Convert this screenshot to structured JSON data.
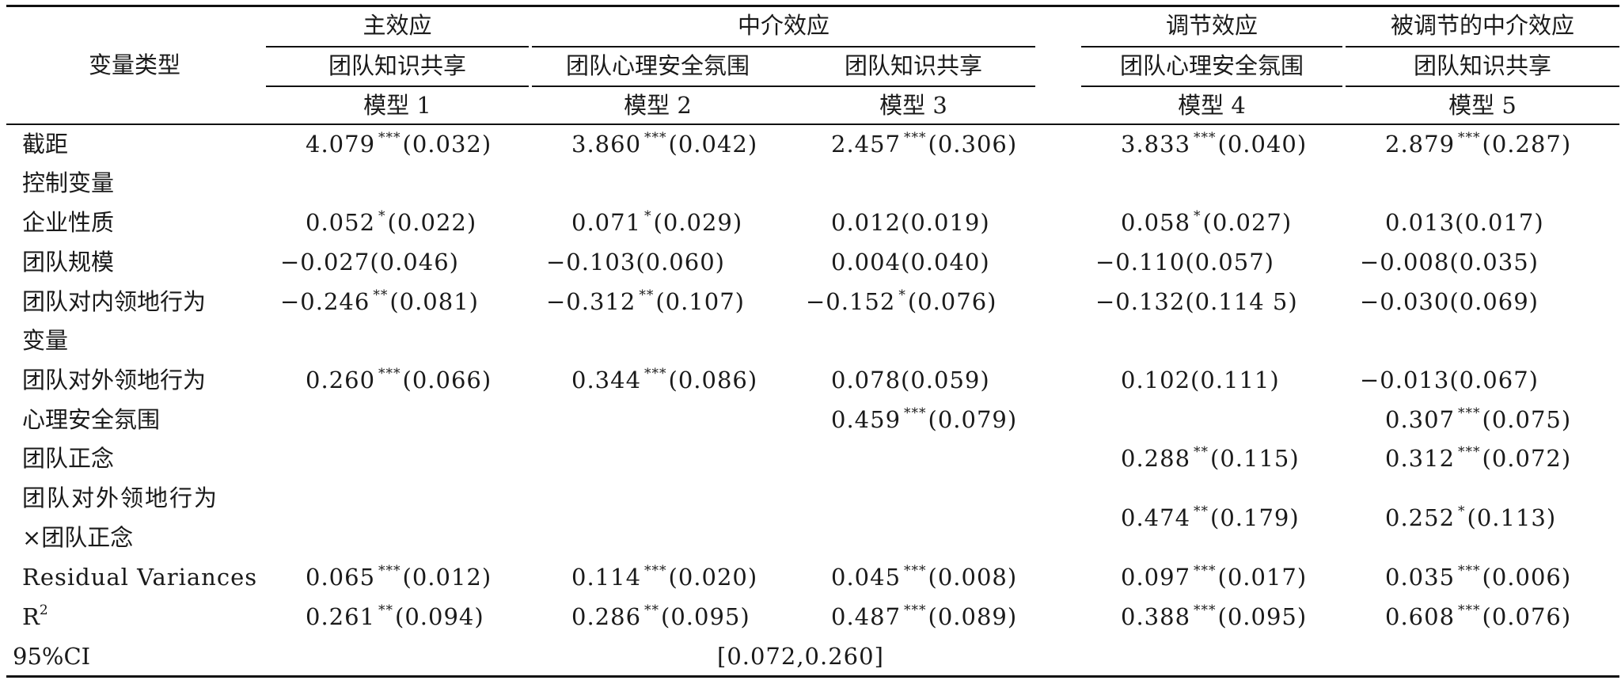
{
  "header": {
    "var_type": "变量类型",
    "groups": [
      "主效应",
      "中介效应",
      "调节效应",
      "被调节的中介效应"
    ],
    "dv": [
      "团队知识共享",
      "团队心理安全氛围",
      "团队知识共享",
      "团队心理安全氛围",
      "团队知识共享"
    ],
    "models": [
      "模型 1",
      "模型 2",
      "模型 3",
      "模型 4",
      "模型 5"
    ]
  },
  "rows": [
    {
      "label": "截距",
      "cells": [
        {
          "v": "4.079",
          "s": "***",
          "se": "(0.032)"
        },
        {
          "v": "3.860",
          "s": "***",
          "se": "(0.042)"
        },
        {
          "v": "2.457",
          "s": "***",
          "se": "(0.306)"
        },
        {
          "v": "3.833",
          "s": "***",
          "se": "(0.040)"
        },
        {
          "v": "2.879",
          "s": "***",
          "se": "(0.287)"
        }
      ]
    },
    {
      "label": "控制变量",
      "cells": []
    },
    {
      "label": "企业性质",
      "cells": [
        {
          "v": "0.052",
          "s": "*",
          "se": "(0.022)"
        },
        {
          "v": "0.071",
          "s": "*",
          "se": "(0.029)"
        },
        {
          "v": "0.012",
          "s": "",
          "se": "(0.019)"
        },
        {
          "v": "0.058",
          "s": "*",
          "se": "(0.027)"
        },
        {
          "v": "0.013",
          "s": "",
          "se": "(0.017)"
        }
      ]
    },
    {
      "label": "团队规模",
      "cells": [
        {
          "v": "−0.027",
          "s": "",
          "se": "(0.046)"
        },
        {
          "v": "−0.103",
          "s": "",
          "se": "(0.060)"
        },
        {
          "v": "0.004",
          "s": "",
          "se": "(0.040)"
        },
        {
          "v": "−0.110",
          "s": "",
          "se": "(0.057)"
        },
        {
          "v": "−0.008",
          "s": "",
          "se": "(0.035)"
        }
      ]
    },
    {
      "label": "团队对内领地行为",
      "cells": [
        {
          "v": "−0.246",
          "s": "**",
          "se": "(0.081)"
        },
        {
          "v": "−0.312",
          "s": "**",
          "se": "(0.107)"
        },
        {
          "v": "−0.152",
          "s": "*",
          "se": "(0.076)"
        },
        {
          "v": "−0.132",
          "s": "",
          "se": "(0.114 5)"
        },
        {
          "v": "−0.030",
          "s": "",
          "se": "(0.069)"
        }
      ]
    },
    {
      "label": "变量",
      "cells": []
    },
    {
      "label": "团队对外领地行为",
      "cells": [
        {
          "v": "0.260",
          "s": "***",
          "se": "(0.066)"
        },
        {
          "v": "0.344",
          "s": "***",
          "se": "(0.086)"
        },
        {
          "v": "0.078",
          "s": "",
          "se": "(0.059)"
        },
        {
          "v": "0.102",
          "s": "",
          "se": "(0.111)"
        },
        {
          "v": "−0.013",
          "s": "",
          "se": "(0.067)"
        }
      ]
    },
    {
      "label": "心理安全氛围",
      "cells": [
        null,
        null,
        {
          "v": "0.459",
          "s": "***",
          "se": "(0.079)"
        },
        null,
        {
          "v": "0.307",
          "s": "***",
          "se": "(0.075)"
        }
      ]
    },
    {
      "label": "团队正念",
      "cells": [
        null,
        null,
        null,
        {
          "v": "0.288",
          "s": "**",
          "se": "(0.115)"
        },
        {
          "v": "0.312",
          "s": "***",
          "se": "(0.072)"
        }
      ]
    },
    {
      "label": "团队对外领地行为",
      "label2": "×团队正念",
      "cells": [
        null,
        null,
        null,
        {
          "v": "0.474",
          "s": "**",
          "se": "(0.179)"
        },
        {
          "v": "0.252",
          "s": "*",
          "se": "(0.113)"
        }
      ]
    },
    {
      "label": "Residual Variances",
      "cells": [
        {
          "v": "0.065",
          "s": "***",
          "se": "(0.012)"
        },
        {
          "v": "0.114",
          "s": "***",
          "se": "(0.020)"
        },
        {
          "v": "0.045",
          "s": "***",
          "se": "(0.008)"
        },
        {
          "v": "0.097",
          "s": "***",
          "se": "(0.017)"
        },
        {
          "v": "0.035",
          "s": "***",
          "se": "(0.006)"
        }
      ]
    },
    {
      "label": "R",
      "label_sup": "2",
      "cells": [
        {
          "v": "0.261",
          "s": "**",
          "se": "(0.094)"
        },
        {
          "v": "0.286",
          "s": "**",
          "se": "(0.095)"
        },
        {
          "v": "0.487",
          "s": "***",
          "se": "(0.089)"
        },
        {
          "v": "0.388",
          "s": "***",
          "se": "(0.095)"
        },
        {
          "v": "0.608",
          "s": "***",
          "se": "(0.076)"
        }
      ]
    }
  ],
  "ci": {
    "label": "95%CI",
    "value": "[0.072,0.260]"
  }
}
